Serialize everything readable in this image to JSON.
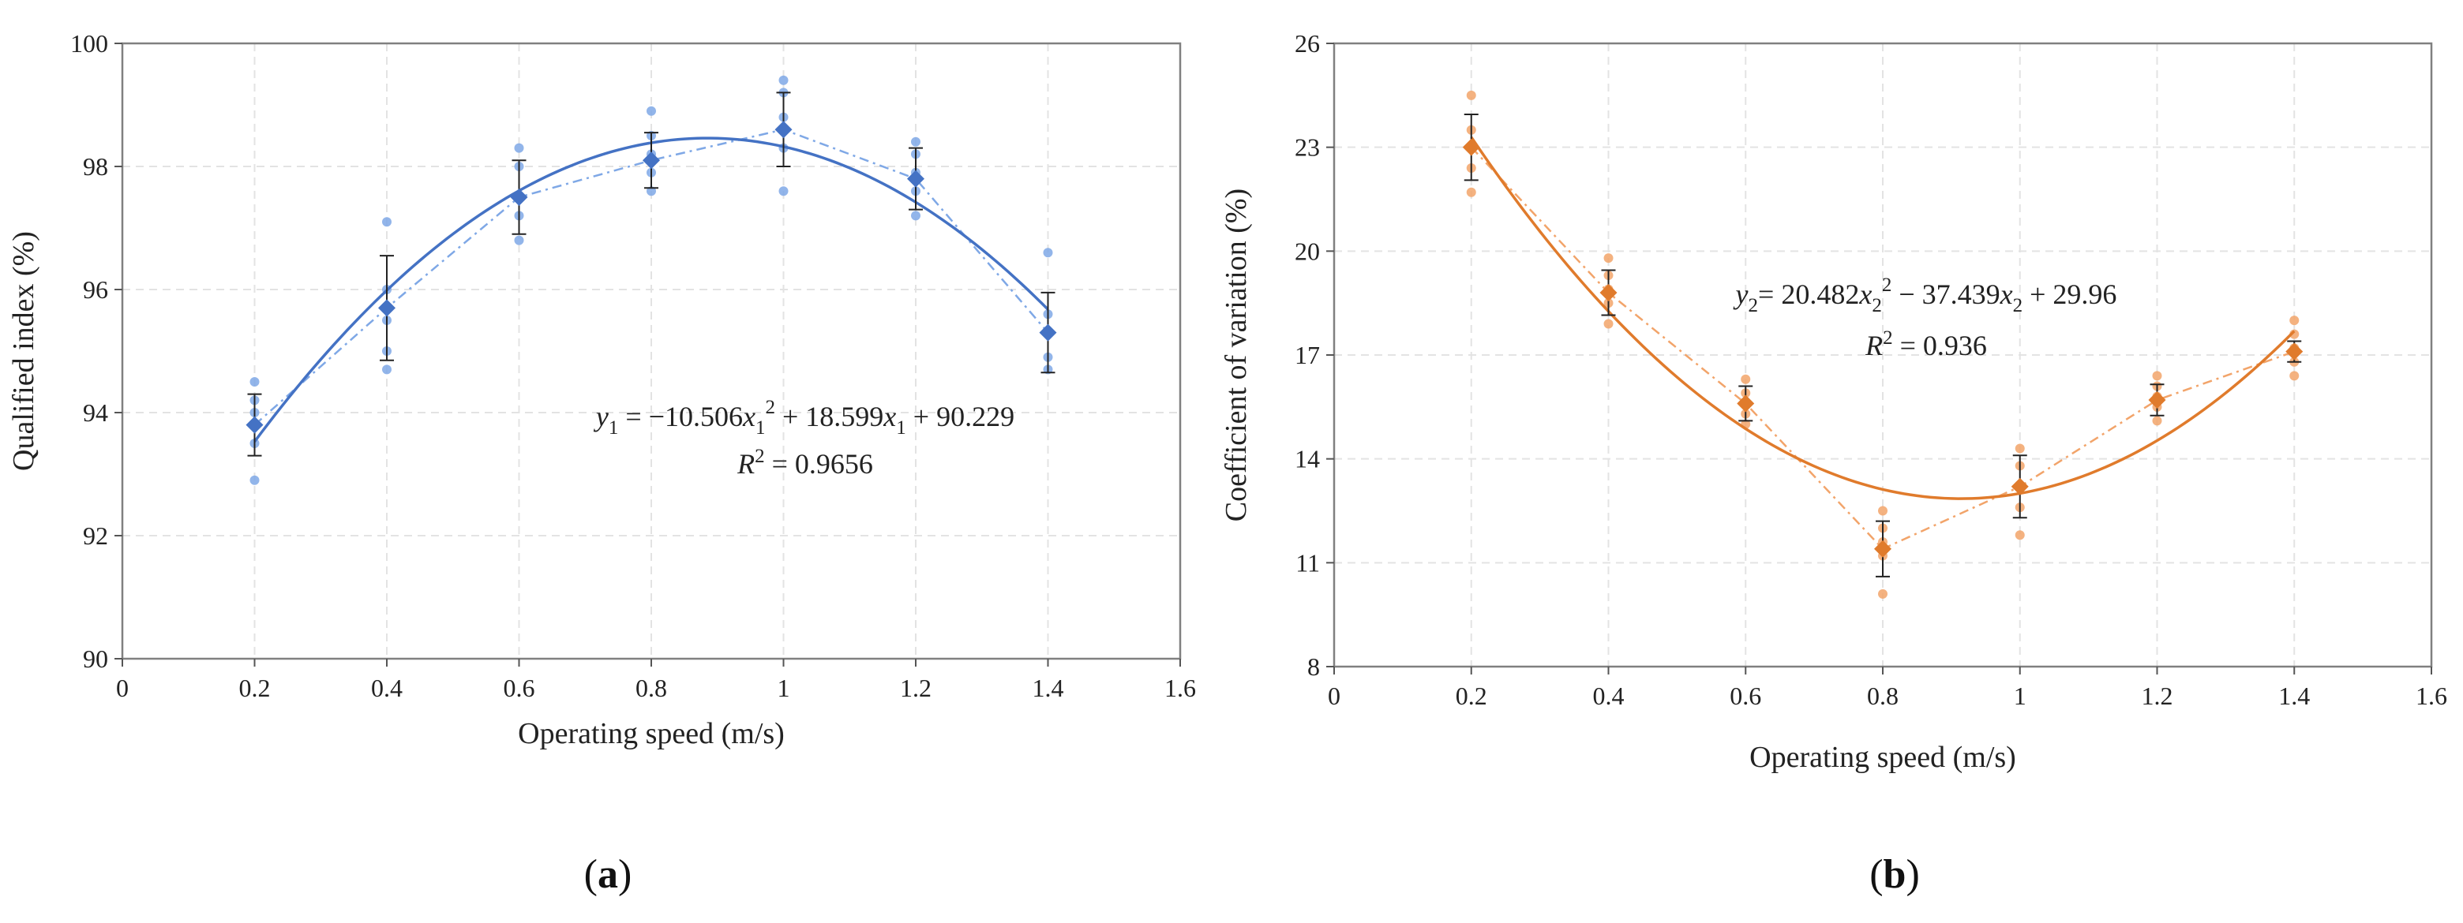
{
  "chart_data": [
    {
      "id": "a",
      "type": "scatter",
      "panel_label_open": "(",
      "panel_label_letter": "a",
      "panel_label_close": ")",
      "xlabel": "Operating speed (m/s)",
      "ylabel": "Qualified index (%)",
      "xlim": [
        0,
        1.6
      ],
      "ylim": [
        90,
        100
      ],
      "xticks": [
        0,
        0.2,
        0.4,
        0.6,
        0.8,
        1,
        1.2,
        1.4,
        1.6
      ],
      "xtick_labels": [
        "0",
        "0.2",
        "0.4",
        "0.6",
        "0.8",
        "1",
        "1.2",
        "1.4",
        "1.6"
      ],
      "yticks": [
        90,
        92,
        94,
        96,
        98,
        100
      ],
      "ytick_labels": [
        "90",
        "92",
        "94",
        "96",
        "98",
        "100"
      ],
      "grid": true,
      "color": "#4472c4",
      "point_color": "#7fa8e6",
      "means": {
        "x": [
          0.2,
          0.4,
          0.6,
          0.8,
          1.0,
          1.2,
          1.4
        ],
        "y": [
          93.8,
          95.7,
          97.5,
          98.1,
          98.6,
          97.8,
          95.3
        ],
        "err": [
          0.5,
          0.85,
          0.6,
          0.45,
          0.6,
          0.5,
          0.65
        ]
      },
      "samples": [
        {
          "x": 0.2,
          "values": [
            92.9,
            93.5,
            94.0,
            94.2,
            94.5
          ]
        },
        {
          "x": 0.4,
          "values": [
            94.7,
            95.0,
            95.5,
            96.0,
            97.1
          ]
        },
        {
          "x": 0.6,
          "values": [
            96.8,
            97.2,
            97.5,
            98.0,
            98.3
          ]
        },
        {
          "x": 0.8,
          "values": [
            97.6,
            97.9,
            98.2,
            98.5,
            98.9
          ]
        },
        {
          "x": 1.0,
          "values": [
            97.6,
            98.3,
            98.8,
            99.2,
            99.4
          ]
        },
        {
          "x": 1.2,
          "values": [
            97.2,
            97.6,
            97.9,
            98.2,
            98.4
          ]
        },
        {
          "x": 1.4,
          "values": [
            94.7,
            94.9,
            95.3,
            95.6,
            96.6
          ]
        }
      ],
      "fit": {
        "a": -10.506,
        "b": 18.599,
        "c": 90.229,
        "x_range": [
          0.2,
          1.4
        ]
      },
      "equation": {
        "y": "y",
        "sub1": "1",
        "equals_coef": " = −10.506",
        "x": "x",
        "sub2": "1",
        "sup": "2",
        "plus_coef": " + 18.599",
        "sub3": "1",
        "const": " + 90.229",
        "r_symbol": "R",
        "r_sup": "2",
        "r_value": " = 0.9656"
      }
    },
    {
      "id": "b",
      "type": "scatter",
      "panel_label_open": "(",
      "panel_label_letter": "b",
      "panel_label_close": ")",
      "xlabel": "Operating speed (m/s)",
      "ylabel": "Coefficient of variation (%)",
      "xlim": [
        0,
        1.6
      ],
      "ylim": [
        8,
        26
      ],
      "xticks": [
        0,
        0.2,
        0.4,
        0.6,
        0.8,
        1,
        1.2,
        1.4,
        1.6
      ],
      "xtick_labels": [
        "0",
        "0.2",
        "0.4",
        "0.6",
        "0.8",
        "1",
        "1.2",
        "1.4",
        "1.6"
      ],
      "yticks": [
        8,
        11,
        14,
        17,
        20,
        23,
        26
      ],
      "ytick_labels": [
        "8",
        "11",
        "14",
        "17",
        "20",
        "23",
        "26"
      ],
      "grid": true,
      "color": "#e07b2c",
      "point_color": "#f2a46a",
      "means": {
        "x": [
          0.2,
          0.4,
          0.6,
          0.8,
          1.0,
          1.2,
          1.4
        ],
        "y": [
          23.0,
          18.8,
          15.6,
          11.4,
          13.2,
          15.7,
          17.1
        ],
        "err": [
          0.95,
          0.65,
          0.5,
          0.8,
          0.9,
          0.45,
          0.3
        ]
      },
      "samples": [
        {
          "x": 0.2,
          "values": [
            21.7,
            22.4,
            23.0,
            23.5,
            24.5
          ]
        },
        {
          "x": 0.4,
          "values": [
            17.9,
            18.5,
            18.9,
            19.3,
            19.8
          ]
        },
        {
          "x": 0.6,
          "values": [
            15.0,
            15.3,
            15.6,
            15.9,
            16.3
          ]
        },
        {
          "x": 0.8,
          "values": [
            10.1,
            11.2,
            11.6,
            12.0,
            12.5
          ]
        },
        {
          "x": 1.0,
          "values": [
            11.8,
            12.6,
            13.2,
            13.8,
            14.3
          ]
        },
        {
          "x": 1.2,
          "values": [
            15.1,
            15.5,
            15.8,
            16.1,
            16.4
          ]
        },
        {
          "x": 1.4,
          "values": [
            16.4,
            16.8,
            17.2,
            17.6,
            18.0
          ]
        }
      ],
      "fit": {
        "a": 20.482,
        "b": -37.439,
        "c": 29.96,
        "x_range": [
          0.2,
          1.4
        ]
      },
      "equation": {
        "y": "y",
        "sub1": "2",
        "equals_coef": "= 20.482",
        "x": "x",
        "sub2": "2",
        "sup": "2",
        "plus_coef": " − 37.439",
        "sub3": "2",
        "const": " + 29.96",
        "r_symbol": "R",
        "r_sup": "2",
        "r_value": " = 0.936"
      }
    }
  ]
}
